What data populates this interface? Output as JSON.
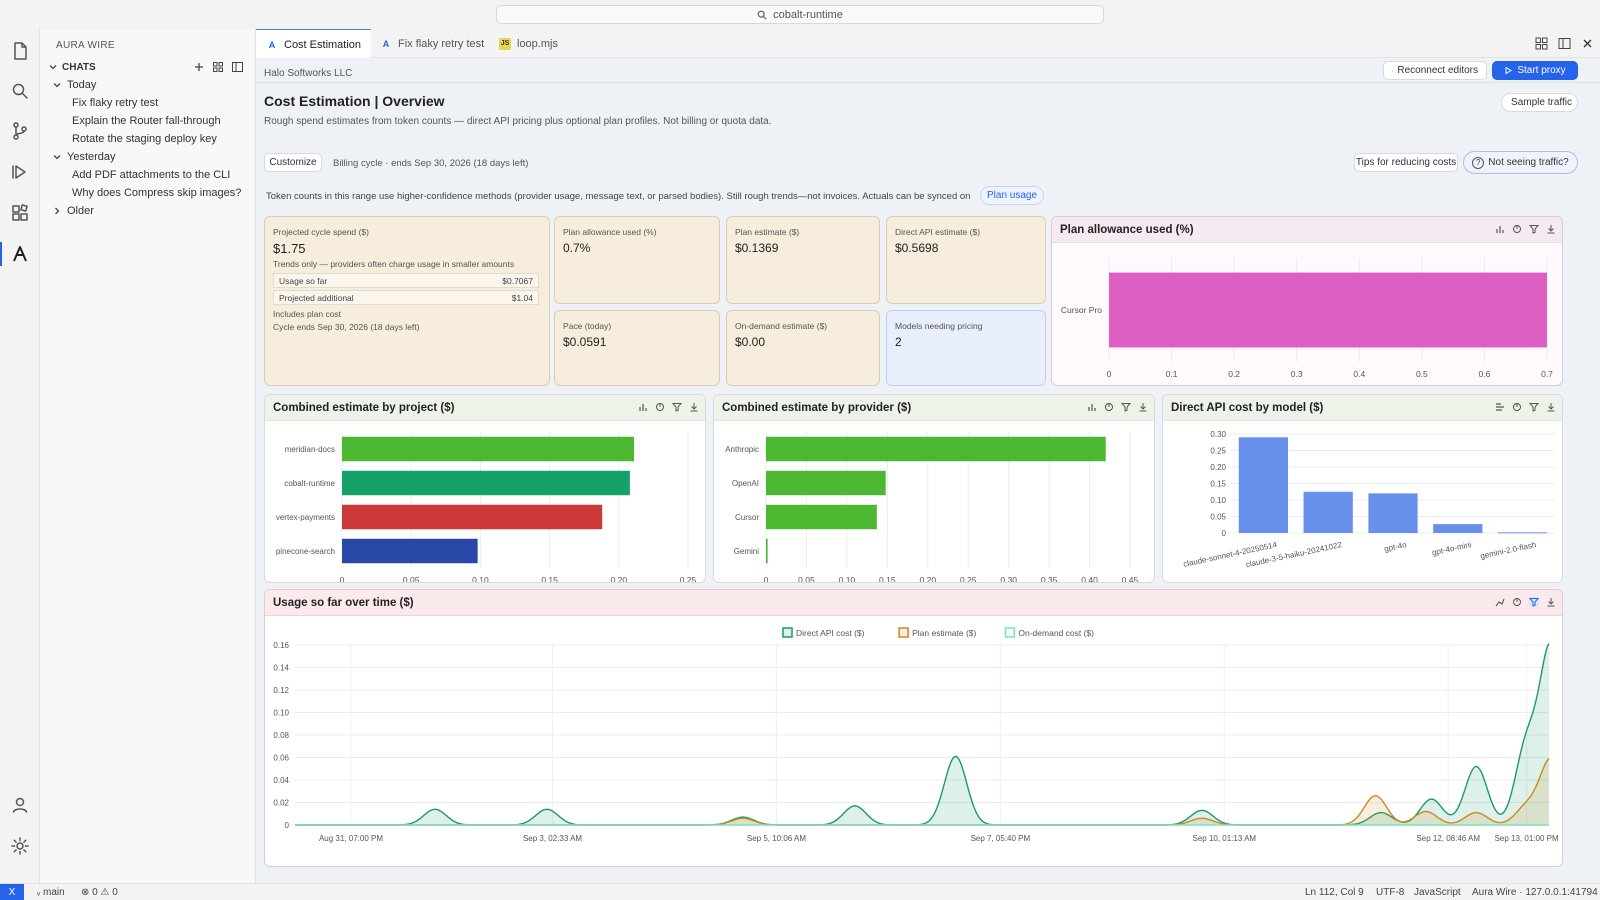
{
  "command_center": {
    "text": "cobalt-runtime"
  },
  "activity_bar": {
    "items": [
      "explorer-icon",
      "search-icon",
      "source-control-icon",
      "run-debug-icon",
      "extensions-icon",
      "aura-wire-icon"
    ],
    "bottom": [
      "account-icon",
      "settings-gear-icon"
    ]
  },
  "sidebar": {
    "title": "AURA WIRE",
    "section": "CHATS",
    "groups": [
      {
        "label": "Today",
        "items": [
          "Fix flaky retry test",
          "Explain the Router fall-through",
          "Rotate the staging deploy key"
        ]
      },
      {
        "label": "Yesterday",
        "items": [
          "Add PDF attachments to the CLI",
          "Why does Compress skip images?"
        ]
      },
      {
        "label": "Older",
        "items": []
      }
    ]
  },
  "tabs": [
    {
      "label": "Cost Estimation",
      "icon": "A",
      "active": true
    },
    {
      "label": "Fix flaky retry test",
      "icon": "A",
      "active": false
    },
    {
      "label": "loop.mjs",
      "icon": "JS",
      "active": false
    }
  ],
  "page": {
    "company": "Halo Softworks LLC",
    "reconnect_label": "Reconnect editors",
    "start_proxy_label": "Start proxy",
    "title": "Cost Estimation | Overview",
    "subtitle": "Rough spend estimates from token counts — direct API pricing plus optional plan profiles. Not billing or quota data.",
    "sample_traffic_label": "Sample traffic",
    "customize_label": "Customize",
    "billing_cycle": "Billing cycle · ends Sep 30, 2026 (18 days left)",
    "tips_label": "Tips for reducing costs",
    "not_seeing_label": "Not seeing traffic?",
    "note": "Token counts in this range use higher-confidence methods (provider usage, message text, or parsed bodies). Still rough trends—not invoices. Actuals can be synced on",
    "plan_usage_label": "Plan usage"
  },
  "projected": {
    "label": "Projected cycle spend ($)",
    "value": "$1.75",
    "trend_note": "Trends only — providers often charge usage in smaller amounts",
    "rows": [
      {
        "k": "Usage so far",
        "v": "$0.7067"
      },
      {
        "k": "Projected additional",
        "v": "$1.04"
      }
    ],
    "includes": "Includes plan cost",
    "cycle_end": "Cycle ends Sep 30, 2026 (18 days left)"
  },
  "metrics": [
    {
      "label": "Plan allowance used (%)",
      "value": "0.7%"
    },
    {
      "label": "Plan estimate ($)",
      "value": "$0.1369"
    },
    {
      "label": "Direct API estimate ($)",
      "value": "$0.5698"
    },
    {
      "label": "Pace (today)",
      "value": "$0.0591"
    },
    {
      "label": "On-demand estimate ($)",
      "value": "$0.00"
    },
    {
      "label": "Models needing pricing",
      "value": "2"
    }
  ],
  "charts": {
    "allowance": {
      "title": "Plan allowance used (%)",
      "chart_data": {
        "type": "bar",
        "orientation": "horizontal",
        "categories": [
          "Cursor Pro"
        ],
        "values": [
          0.7
        ],
        "xlim": [
          0,
          0.7
        ],
        "xticks": [
          "0",
          "0.1",
          "0.2",
          "0.3",
          "0.4",
          "0.5",
          "0.6",
          "0.7"
        ],
        "colors": [
          "#dd5fc4"
        ]
      }
    },
    "by_project": {
      "title": "Combined estimate by project ($)",
      "chart_data": {
        "type": "bar",
        "orientation": "horizontal",
        "categories": [
          "meridian-docs",
          "cobalt-runtime",
          "vertex-payments",
          "pinecone-search"
        ],
        "values": [
          0.211,
          0.208,
          0.188,
          0.098
        ],
        "xlim": [
          0,
          0.25
        ],
        "xticks": [
          "0",
          "0.05",
          "0.10",
          "0.15",
          "0.20",
          "0.25"
        ],
        "colors": [
          "#4cb832",
          "#18a06a",
          "#cc3838",
          "#2947a6"
        ]
      }
    },
    "by_provider": {
      "title": "Combined estimate by provider ($)",
      "chart_data": {
        "type": "bar",
        "orientation": "horizontal",
        "categories": [
          "Anthropic",
          "OpenAI",
          "Cursor",
          "Gemini"
        ],
        "values": [
          0.42,
          0.148,
          0.137,
          0.002
        ],
        "xlim": [
          0,
          0.45
        ],
        "xticks": [
          "0",
          "0.05",
          "0.10",
          "0.15",
          "0.20",
          "0.25",
          "0.30",
          "0.35",
          "0.40",
          "0.45"
        ],
        "colors": [
          "#4cb832",
          "#4cb832",
          "#4cb832",
          "#4cb832"
        ]
      }
    },
    "by_model": {
      "title": "Direct API cost by model ($)",
      "chart_data": {
        "type": "bar",
        "orientation": "vertical",
        "categories": [
          "claude-sonnet-4-20250514",
          "claude-3-5-haiku-20241022",
          "gpt-4o",
          "gpt-4o-mini",
          "gemini-2.0-flash"
        ],
        "values": [
          0.29,
          0.125,
          0.12,
          0.027,
          0.002
        ],
        "ylim": [
          0,
          0.3
        ],
        "yticks": [
          "0",
          "0.05",
          "0.10",
          "0.15",
          "0.20",
          "0.25",
          "0.30"
        ],
        "colors": [
          "#6690ec"
        ]
      }
    },
    "over_time": {
      "title": "Usage so far over time ($)",
      "chart_data": {
        "type": "line",
        "ylim": [
          0,
          0.16
        ],
        "yticks": [
          "0",
          "0.02",
          "0.04",
          "0.06",
          "0.08",
          "0.10",
          "0.12",
          "0.14",
          "0.16"
        ],
        "xticks": [
          "Aug 31, 07:00 PM",
          "Sep 3, 02:33 AM",
          "Sep 5, 10:06 AM",
          "Sep 7, 05:40 PM",
          "Sep 10, 01:13 AM",
          "Sep 12, 08:46 AM",
          "Sep 13, 01:00 PM"
        ],
        "xtick_pos": [
          0,
          1.8,
          3.8,
          5.8,
          7.8,
          9.8,
          10.5
        ],
        "x_domain": [
          -0.5,
          10.7
        ],
        "series": [
          {
            "name": "Direct API cost ($)",
            "color": "#1a9a6a",
            "fill": "rgba(26,154,106,0.15)",
            "peaks": [
              [
                0.75,
                0.014
              ],
              [
                1.75,
                0.014
              ],
              [
                3.5,
                0.007
              ],
              [
                4.5,
                0.017
              ],
              [
                5.4,
                0.061
              ],
              [
                7.6,
                0.013
              ],
              [
                9.2,
                0.011
              ],
              [
                9.65,
                0.023
              ],
              [
                10.05,
                0.052
              ],
              [
                10.5,
                0.07
              ],
              [
                10.72,
                0.155
              ]
            ]
          },
          {
            "name": "Plan estimate ($)",
            "color": "#c98a20",
            "fill": "rgba(201,138,32,0.15)",
            "peaks": [
              [
                3.5,
                0.006
              ],
              [
                7.6,
                0.006
              ],
              [
                9.15,
                0.026
              ],
              [
                9.6,
                0.012
              ],
              [
                10.05,
                0.011
              ],
              [
                10.5,
                0.016
              ],
              [
                10.72,
                0.058
              ]
            ]
          },
          {
            "name": "On-demand cost ($)",
            "color": "#7fdfc2",
            "fill": "rgba(127,223,194,0.12)",
            "peaks": []
          }
        ]
      }
    }
  },
  "status_bar": {
    "remote": "X",
    "branch": "main",
    "problems": "⊗ 0 ⚠ 0",
    "position": "Ln 112, Col 9",
    "encoding": "UTF-8",
    "language": "JavaScript",
    "server": "Aura Wire · 127.0.0.1:41794"
  }
}
